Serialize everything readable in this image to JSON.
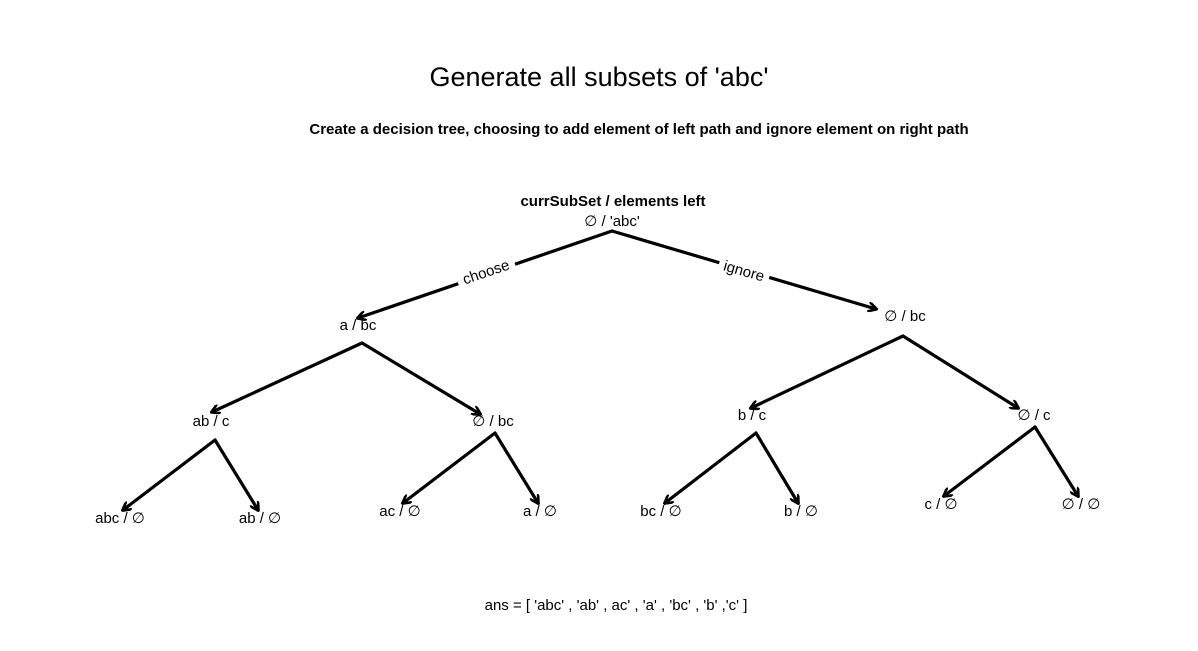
{
  "title": "Generate all subsets of 'abc'",
  "subtitle": "Create a decision tree, choosing to add element of left path and ignore element on right path",
  "legend": "currSubSet / elements left",
  "answer": "ans = [ 'abc' , 'ab' , ac' , 'a' , 'bc' , 'b' ,'c' ]",
  "edge_labels": {
    "choose": "choose",
    "ignore": "ignore"
  },
  "nodes": {
    "root": "∅ /  'abc'",
    "a_bc": "a / bc",
    "empty_bc": "∅ / bc",
    "ab_c": "ab / c",
    "l_empty_bc": "∅ / bc",
    "b_c": "b / c",
    "empty_c": "∅ / c",
    "abc_empty": "abc / ∅",
    "ab_empty": "ab / ∅",
    "ac_empty": "ac / ∅",
    "a_empty": "a / ∅",
    "bc_empty": "bc / ∅",
    "b_empty": "b / ∅",
    "c_empty": "c / ∅",
    "empty_empty": "∅ / ∅"
  }
}
